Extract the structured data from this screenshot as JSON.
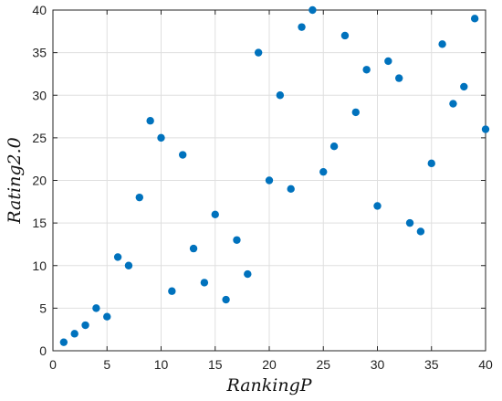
{
  "chart_data": {
    "type": "scatter",
    "xlabel": "RankingP",
    "ylabel": "Rating2.0",
    "xlim": [
      0,
      40
    ],
    "ylim": [
      0,
      40
    ],
    "xticks": [
      0,
      5,
      10,
      15,
      20,
      25,
      30,
      35,
      40
    ],
    "yticks": [
      0,
      5,
      10,
      15,
      20,
      25,
      30,
      35,
      40
    ],
    "grid": true,
    "marker_color": "#0072BD",
    "series": [
      {
        "points": [
          [
            1,
            1
          ],
          [
            2,
            2
          ],
          [
            3,
            3
          ],
          [
            4,
            5
          ],
          [
            5,
            4
          ],
          [
            6,
            11
          ],
          [
            7,
            10
          ],
          [
            8,
            18
          ],
          [
            9,
            27
          ],
          [
            10,
            25
          ],
          [
            11,
            7
          ],
          [
            12,
            23
          ],
          [
            13,
            12
          ],
          [
            14,
            8
          ],
          [
            15,
            16
          ],
          [
            16,
            6
          ],
          [
            17,
            13
          ],
          [
            18,
            9
          ],
          [
            19,
            35
          ],
          [
            20,
            20
          ],
          [
            21,
            30
          ],
          [
            22,
            19
          ],
          [
            23,
            38
          ],
          [
            24,
            40
          ],
          [
            25,
            21
          ],
          [
            26,
            24
          ],
          [
            27,
            37
          ],
          [
            28,
            28
          ],
          [
            29,
            33
          ],
          [
            30,
            17
          ],
          [
            31,
            34
          ],
          [
            32,
            32
          ],
          [
            33,
            15
          ],
          [
            34,
            14
          ],
          [
            35,
            22
          ],
          [
            36,
            36
          ],
          [
            37,
            29
          ],
          [
            38,
            31
          ],
          [
            39,
            39
          ],
          [
            40,
            26
          ]
        ]
      }
    ]
  }
}
